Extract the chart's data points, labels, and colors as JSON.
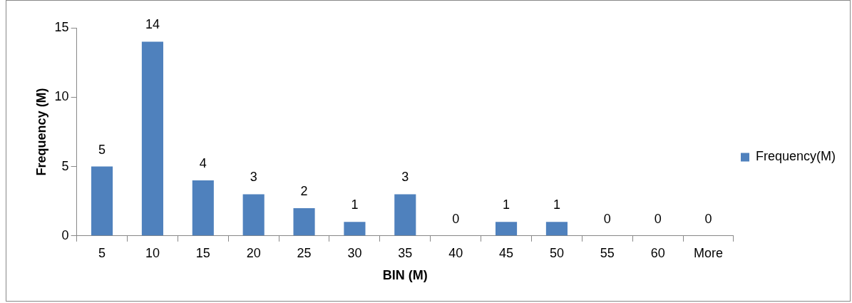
{
  "chart_data": {
    "type": "bar",
    "xlabel": "BIN (M)",
    "ylabel": "Frequency (M)",
    "categories": [
      "5",
      "10",
      "15",
      "20",
      "25",
      "30",
      "35",
      "40",
      "45",
      "50",
      "55",
      "60",
      "More"
    ],
    "series": [
      {
        "name": "Frequency(M)",
        "color": "#4f81bd",
        "values": [
          5,
          14,
          4,
          3,
          2,
          1,
          3,
          0,
          1,
          1,
          0,
          0,
          0
        ]
      }
    ],
    "ylim": [
      0,
      15
    ],
    "yticks": [
      0,
      5,
      10,
      15
    ],
    "grid": false,
    "legend": "right",
    "data_labels": true
  }
}
